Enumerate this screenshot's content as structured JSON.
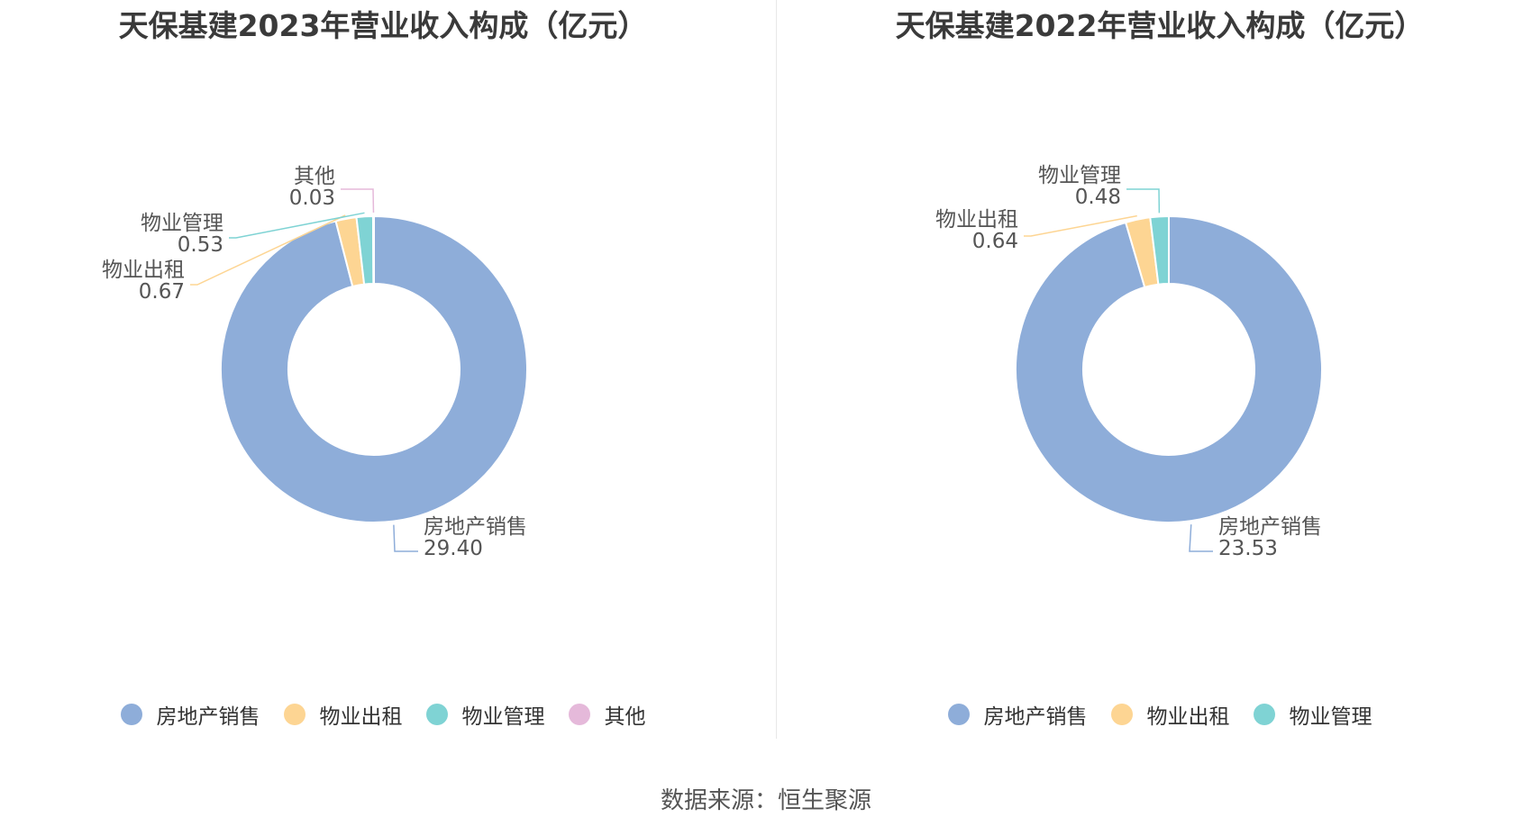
{
  "source_label": "数据来源：恒生聚源",
  "chart_data": [
    {
      "type": "pie",
      "title": "天保基建2023年营业收入构成（亿元）",
      "categories": [
        "房地产销售",
        "物业出租",
        "物业管理",
        "其他"
      ],
      "values": [
        29.4,
        0.67,
        0.53,
        0.03
      ],
      "value_labels": [
        "29.40",
        "0.67",
        "0.53",
        "0.03"
      ],
      "colors": [
        "#8eadd9",
        "#fdd593",
        "#7fd3d4",
        "#e5b9da"
      ],
      "legend_position": "bottom",
      "style": "donut"
    },
    {
      "type": "pie",
      "title": "天保基建2022年营业收入构成（亿元）",
      "categories": [
        "房地产销售",
        "物业出租",
        "物业管理"
      ],
      "values": [
        23.53,
        0.64,
        0.48
      ],
      "value_labels": [
        "23.53",
        "0.64",
        "0.48"
      ],
      "colors": [
        "#8eadd9",
        "#fdd593",
        "#7fd3d4"
      ],
      "legend_position": "bottom",
      "style": "donut"
    }
  ]
}
